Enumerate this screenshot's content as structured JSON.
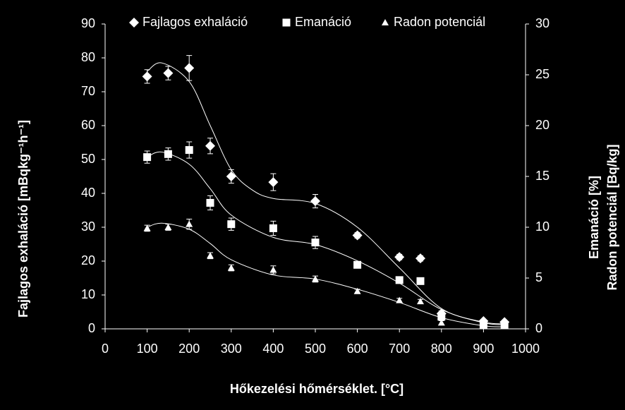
{
  "chart_data": {
    "type": "scatter",
    "xlabel": "Hőkezelési hőmérséklet. [°C]",
    "ylabel": "Fajlagos exhaláció [mBqkg⁻¹h⁻¹]",
    "y2label": [
      "Emanáció [%]",
      "Radon potenciál [Bq/kg]"
    ],
    "xlim": [
      0,
      1000
    ],
    "xticks": [
      0,
      100,
      200,
      300,
      400,
      500,
      600,
      700,
      800,
      900,
      1000
    ],
    "ylim": [
      0,
      90
    ],
    "yticks": [
      0,
      10,
      20,
      30,
      40,
      50,
      60,
      70,
      80,
      90
    ],
    "y2lim": [
      0,
      30
    ],
    "y2ticks": [
      0,
      5,
      10,
      15,
      20,
      25,
      30
    ],
    "legend": "top",
    "background": "#000000",
    "series": [
      {
        "name": "Fajlagos exhaláció",
        "marker": "diamond",
        "color": "#ffffff",
        "axis": "y",
        "x": [
          100,
          150,
          200,
          250,
          300,
          400,
          500,
          600,
          700,
          750,
          800,
          900,
          950
        ],
        "values": [
          74.5,
          75.5,
          77,
          54,
          45,
          43.3,
          37.7,
          27.6,
          21.2,
          20.8,
          4.5,
          2.3,
          2.0
        ],
        "errors": [
          2,
          2,
          3.7,
          2.3,
          2,
          2.5,
          2,
          0.8,
          0.8,
          0.8,
          0.8,
          0.5,
          0.5
        ],
        "fit": {
          "x": [
            100,
            135,
            200,
            250,
            300,
            350,
            400,
            500,
            600,
            700,
            800,
            900,
            950
          ],
          "values": [
            76,
            78.5,
            73,
            60,
            47,
            41,
            38.5,
            37,
            30,
            18,
            6,
            2,
            1.5
          ]
        }
      },
      {
        "name": "Emanáció",
        "marker": "square",
        "color": "#ffffff",
        "axis": "y2",
        "x": [
          100,
          150,
          200,
          250,
          300,
          400,
          500,
          600,
          700,
          750,
          800,
          900,
          950
        ],
        "values": [
          16.9,
          17.2,
          17.6,
          12.4,
          10.3,
          9.9,
          8.5,
          6.3,
          4.8,
          4.7,
          1.2,
          0.4,
          0.35
        ],
        "errors": [
          0.6,
          0.6,
          0.8,
          0.7,
          0.6,
          0.7,
          0.6,
          0.3,
          0.3,
          0.3,
          0.3,
          0.2,
          0.2
        ],
        "fit": {
          "x": [
            100,
            135,
            200,
            250,
            300,
            400,
            500,
            600,
            700,
            800,
            900,
            950
          ],
          "values": [
            16.9,
            17.4,
            16.2,
            13.8,
            11.2,
            9,
            8.3,
            6.7,
            4.5,
            1.9,
            0.6,
            0.4
          ]
        }
      },
      {
        "name": "Radon potenciál",
        "marker": "triangle",
        "color": "#ffffff",
        "axis": "y2",
        "x": [
          100,
          150,
          200,
          250,
          300,
          400,
          500,
          600,
          700,
          750,
          800,
          900,
          950
        ],
        "values": [
          9.9,
          10,
          10.3,
          7.2,
          6.0,
          5.8,
          4.9,
          3.7,
          2.8,
          2.7,
          0.6,
          0.35,
          0.3
        ],
        "errors": [
          0.3,
          0.3,
          0.5,
          0.3,
          0.3,
          0.4,
          0.3,
          0.2,
          0.2,
          0.2,
          0.2,
          0.1,
          0.1
        ],
        "fit": {
          "x": [
            100,
            135,
            200,
            250,
            300,
            400,
            500,
            600,
            700,
            800,
            900,
            950
          ],
          "values": [
            10,
            10.4,
            9.8,
            8.4,
            6.8,
            5.3,
            4.9,
            3.9,
            2.6,
            1.1,
            0.3,
            0.2
          ]
        }
      }
    ]
  }
}
